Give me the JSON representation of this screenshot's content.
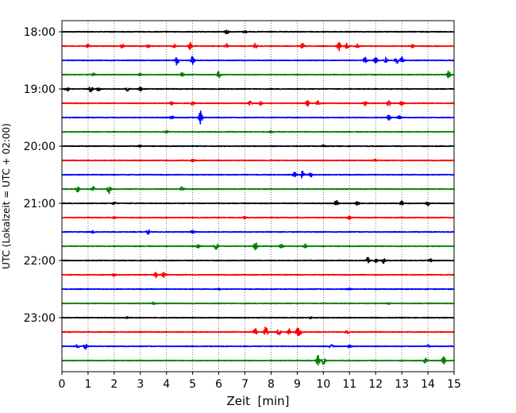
{
  "chart_data": {
    "type": "line",
    "title": "",
    "xlabel": "Zeit  [min]",
    "ylabel": "UTC (Lokalzeit = UTC + 02:00)",
    "xlim": [
      0,
      15
    ],
    "x_ticks": [
      0,
      1,
      2,
      3,
      4,
      5,
      6,
      7,
      8,
      9,
      10,
      11,
      12,
      13,
      14,
      15
    ],
    "x_tick_labels": [
      "0",
      "1",
      "2",
      "3",
      "4",
      "5",
      "6",
      "7",
      "8",
      "9",
      "10",
      "11",
      "12",
      "13",
      "14",
      "15"
    ],
    "y_tick_labels": [
      "18:00",
      "19:00",
      "20:00",
      "21:00",
      "22:00",
      "23:00"
    ],
    "y_tick_traces": [
      0,
      4,
      8,
      12,
      16,
      20
    ],
    "grid": "vertical dotted at each minute",
    "trace_colors": [
      "#000000",
      "#ff0000",
      "#0000ff",
      "#008000"
    ],
    "traces": [
      {
        "start": "18:00",
        "color": "#000000",
        "bursts": [
          [
            6.3,
            0.3
          ],
          [
            7.0,
            0.2
          ]
        ]
      },
      {
        "start": "18:15",
        "color": "#ff0000",
        "bursts": [
          [
            1.0,
            0.25
          ],
          [
            2.3,
            0.25
          ],
          [
            3.3,
            0.2
          ],
          [
            4.3,
            0.2
          ],
          [
            4.9,
            0.5
          ],
          [
            6.3,
            0.3
          ],
          [
            7.4,
            0.35
          ],
          [
            9.2,
            0.35
          ],
          [
            10.6,
            0.6
          ],
          [
            10.9,
            0.4
          ],
          [
            11.3,
            0.25
          ],
          [
            13.4,
            0.2
          ]
        ]
      },
      {
        "start": "18:30",
        "color": "#0000ff",
        "bursts": [
          [
            4.4,
            0.7
          ],
          [
            5.0,
            0.6
          ],
          [
            11.6,
            0.4
          ],
          [
            12.0,
            0.35
          ],
          [
            12.4,
            0.4
          ],
          [
            12.8,
            0.5
          ],
          [
            13.0,
            0.45
          ]
        ]
      },
      {
        "start": "18:45",
        "color": "#008000",
        "bursts": [
          [
            1.2,
            0.2
          ],
          [
            3.0,
            0.2
          ],
          [
            4.6,
            0.25
          ],
          [
            6.0,
            0.45
          ],
          [
            14.8,
            0.6
          ]
        ]
      },
      {
        "start": "19:00",
        "color": "#000000",
        "bursts": [
          [
            0.2,
            0.35
          ],
          [
            1.1,
            0.5
          ],
          [
            1.4,
            0.3
          ],
          [
            2.5,
            0.25
          ],
          [
            3.0,
            0.25
          ]
        ]
      },
      {
        "start": "19:15",
        "color": "#ff0000",
        "bursts": [
          [
            4.2,
            0.35
          ],
          [
            5.0,
            0.25
          ],
          [
            7.2,
            0.35
          ],
          [
            7.6,
            0.25
          ],
          [
            9.4,
            0.4
          ],
          [
            9.8,
            0.3
          ],
          [
            11.6,
            0.35
          ],
          [
            12.5,
            0.35
          ],
          [
            13.0,
            0.3
          ]
        ]
      },
      {
        "start": "19:30",
        "color": "#0000ff",
        "bursts": [
          [
            4.2,
            0.25
          ],
          [
            5.3,
            0.9
          ],
          [
            12.5,
            0.4
          ],
          [
            12.9,
            0.25
          ]
        ]
      },
      {
        "start": "19:45",
        "color": "#008000",
        "bursts": [
          [
            4.0,
            0.15
          ],
          [
            8.0,
            0.15
          ]
        ]
      },
      {
        "start": "20:00",
        "color": "#000000",
        "bursts": [
          [
            3.0,
            0.15
          ],
          [
            10.0,
            0.15
          ]
        ]
      },
      {
        "start": "20:15",
        "color": "#ff0000",
        "bursts": [
          [
            5.0,
            0.15
          ],
          [
            12.0,
            0.15
          ]
        ]
      },
      {
        "start": "20:30",
        "color": "#0000ff",
        "bursts": [
          [
            8.9,
            0.35
          ],
          [
            9.2,
            0.5
          ],
          [
            9.5,
            0.35
          ]
        ]
      },
      {
        "start": "20:45",
        "color": "#008000",
        "bursts": [
          [
            0.6,
            0.4
          ],
          [
            1.2,
            0.3
          ],
          [
            1.8,
            0.6
          ],
          [
            4.6,
            0.4
          ]
        ]
      },
      {
        "start": "21:00",
        "color": "#000000",
        "bursts": [
          [
            2.0,
            0.2
          ],
          [
            10.5,
            0.5
          ],
          [
            11.3,
            0.45
          ],
          [
            13.0,
            0.3
          ],
          [
            14.0,
            0.3
          ]
        ]
      },
      {
        "start": "21:15",
        "color": "#ff0000",
        "bursts": [
          [
            2.0,
            0.15
          ],
          [
            7.0,
            0.15
          ],
          [
            11.0,
            0.2
          ]
        ]
      },
      {
        "start": "21:30",
        "color": "#0000ff",
        "bursts": [
          [
            1.2,
            0.2
          ],
          [
            3.3,
            0.3
          ],
          [
            5.0,
            0.2
          ]
        ]
      },
      {
        "start": "21:45",
        "color": "#008000",
        "bursts": [
          [
            5.2,
            0.3
          ],
          [
            5.9,
            0.55
          ],
          [
            7.4,
            0.6
          ],
          [
            8.4,
            0.35
          ],
          [
            9.3,
            0.3
          ]
        ]
      },
      {
        "start": "22:00",
        "color": "#000000",
        "bursts": [
          [
            11.7,
            0.4
          ],
          [
            12.0,
            0.25
          ],
          [
            12.3,
            0.35
          ],
          [
            14.1,
            0.3
          ]
        ]
      },
      {
        "start": "22:15",
        "color": "#ff0000",
        "bursts": [
          [
            2.0,
            0.2
          ],
          [
            3.6,
            0.35
          ],
          [
            3.9,
            0.3
          ]
        ]
      },
      {
        "start": "22:30",
        "color": "#0000ff",
        "bursts": [
          [
            6.0,
            0.12
          ],
          [
            11.0,
            0.12
          ]
        ]
      },
      {
        "start": "22:45",
        "color": "#008000",
        "bursts": [
          [
            3.5,
            0.12
          ],
          [
            12.5,
            0.12
          ]
        ]
      },
      {
        "start": "23:00",
        "color": "#000000",
        "bursts": [
          [
            2.5,
            0.12
          ],
          [
            9.5,
            0.12
          ]
        ]
      },
      {
        "start": "23:15",
        "color": "#ff0000",
        "bursts": [
          [
            7.4,
            0.55
          ],
          [
            7.8,
            0.7
          ],
          [
            8.3,
            0.65
          ],
          [
            8.7,
            0.45
          ],
          [
            9.0,
            0.45
          ],
          [
            9.1,
            0.5
          ],
          [
            10.9,
            0.3
          ]
        ]
      },
      {
        "start": "23:30",
        "color": "#0000ff",
        "bursts": [
          [
            0.6,
            0.25
          ],
          [
            0.9,
            0.35
          ],
          [
            10.3,
            0.25
          ],
          [
            11.0,
            0.2
          ],
          [
            14.0,
            0.2
          ]
        ]
      },
      {
        "start": "23:45",
        "color": "#008000",
        "bursts": [
          [
            9.8,
            0.7
          ],
          [
            10.0,
            0.6
          ],
          [
            13.9,
            0.35
          ],
          [
            14.6,
            0.5
          ]
        ]
      }
    ]
  }
}
